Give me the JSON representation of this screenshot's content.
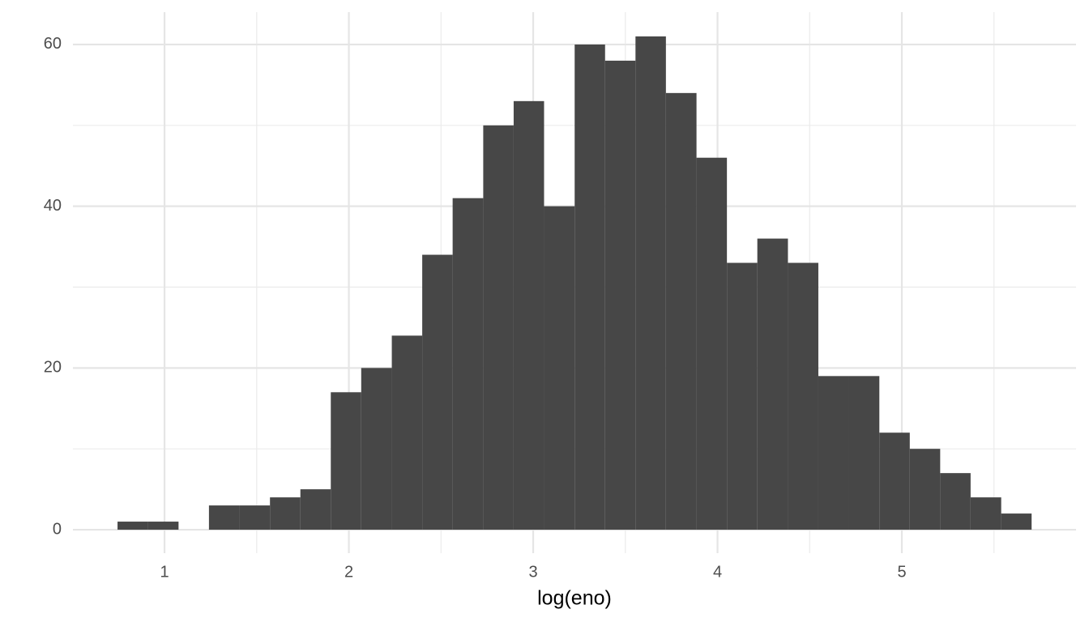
{
  "chart_data": {
    "type": "histogram",
    "x_label": "log(eno)",
    "bins": [
      0.745,
      0.91,
      1.076,
      1.241,
      1.406,
      1.572,
      1.737,
      1.902,
      2.067,
      2.233,
      2.398,
      2.563,
      2.729,
      2.894,
      3.059,
      3.225,
      3.39,
      3.555,
      3.72,
      3.886,
      4.051,
      4.216,
      4.382,
      4.547,
      4.712,
      4.878,
      5.043,
      5.208,
      5.373,
      5.539,
      5.704
    ],
    "values": [
      1,
      1,
      0,
      3,
      3,
      4,
      5,
      17,
      20,
      24,
      34,
      41,
      50,
      53,
      40,
      60,
      58,
      61,
      54,
      46,
      33,
      36,
      33,
      19,
      19,
      12,
      10,
      7,
      4,
      2
    ],
    "color": "#474747",
    "xlim": [
      0.503,
      5.945
    ],
    "ylim": [
      -2.9,
      64.0
    ],
    "xticks": [
      1,
      2,
      3,
      4,
      5
    ],
    "yticks": [
      0,
      20,
      40,
      60
    ],
    "grid": true
  }
}
